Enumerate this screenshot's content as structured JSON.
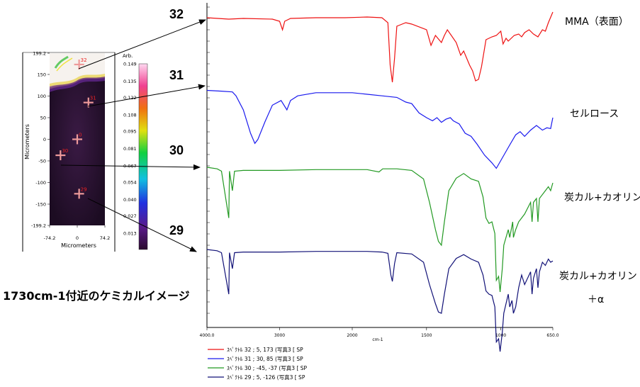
{
  "chart_data": {
    "type": "line",
    "title": "",
    "xlabel": "cm-1",
    "ylabel": "",
    "xlim": [
      4000,
      650
    ],
    "x_ticks": [
      "4000.0",
      "3000",
      "2000",
      "1500",
      "1000",
      "650.0"
    ],
    "grid": false,
    "legend_position": "bottom-left",
    "series": [
      {
        "id": "32",
        "name": "ｽﾍﾟｸﾄﾙ 32 ; 5, 173 (写真3 [ SP",
        "label": "MMA（表面）",
        "color": "#ee1111",
        "points": [
          [
            4000,
            0.97
          ],
          [
            3850,
            0.96
          ],
          [
            3700,
            0.95
          ],
          [
            3500,
            0.96
          ],
          [
            3100,
            0.95
          ],
          [
            3000,
            0.92
          ],
          [
            2960,
            0.8
          ],
          [
            2930,
            0.92
          ],
          [
            2850,
            0.96
          ],
          [
            2500,
            0.97
          ],
          [
            2100,
            0.97
          ],
          [
            1900,
            0.98
          ],
          [
            1800,
            0.97
          ],
          [
            1760,
            0.9
          ],
          [
            1745,
            0.3
          ],
          [
            1730,
            0.06
          ],
          [
            1715,
            0.4
          ],
          [
            1700,
            0.85
          ],
          [
            1640,
            0.9
          ],
          [
            1600,
            0.88
          ],
          [
            1500,
            0.8
          ],
          [
            1470,
            0.58
          ],
          [
            1440,
            0.72
          ],
          [
            1400,
            0.62
          ],
          [
            1380,
            0.72
          ],
          [
            1360,
            0.8
          ],
          [
            1300,
            0.62
          ],
          [
            1270,
            0.44
          ],
          [
            1250,
            0.5
          ],
          [
            1210,
            0.3
          ],
          [
            1190,
            0.22
          ],
          [
            1170,
            0.08
          ],
          [
            1150,
            0.1
          ],
          [
            1130,
            0.28
          ],
          [
            1100,
            0.66
          ],
          [
            1060,
            0.7
          ],
          [
            1030,
            0.72
          ],
          [
            1000,
            0.78
          ],
          [
            985,
            0.6
          ],
          [
            965,
            0.68
          ],
          [
            950,
            0.64
          ],
          [
            910,
            0.72
          ],
          [
            880,
            0.74
          ],
          [
            860,
            0.7
          ],
          [
            840,
            0.76
          ],
          [
            810,
            0.8
          ],
          [
            780,
            0.74
          ],
          [
            750,
            0.7
          ],
          [
            720,
            0.8
          ],
          [
            700,
            0.78
          ],
          [
            680,
            0.9
          ],
          [
            660,
            1.0
          ],
          [
            650,
            1.05
          ]
        ]
      },
      {
        "id": "31",
        "name": "ｽﾍﾟｸﾄﾙ 31 ; 30, 85 (写真3 [ SP",
        "label": "セルロース",
        "color": "#1a1aee",
        "points": [
          [
            4000,
            0.95
          ],
          [
            3800,
            0.94
          ],
          [
            3650,
            0.93
          ],
          [
            3600,
            0.88
          ],
          [
            3500,
            0.7
          ],
          [
            3400,
            0.4
          ],
          [
            3340,
            0.27
          ],
          [
            3300,
            0.32
          ],
          [
            3200,
            0.55
          ],
          [
            3100,
            0.76
          ],
          [
            2980,
            0.82
          ],
          [
            2900,
            0.7
          ],
          [
            2850,
            0.82
          ],
          [
            2750,
            0.88
          ],
          [
            2500,
            0.92
          ],
          [
            2200,
            0.92
          ],
          [
            2000,
            0.92
          ],
          [
            1900,
            0.9
          ],
          [
            1800,
            0.88
          ],
          [
            1700,
            0.86
          ],
          [
            1640,
            0.8
          ],
          [
            1600,
            0.78
          ],
          [
            1550,
            0.66
          ],
          [
            1500,
            0.6
          ],
          [
            1460,
            0.56
          ],
          [
            1430,
            0.6
          ],
          [
            1400,
            0.54
          ],
          [
            1370,
            0.58
          ],
          [
            1340,
            0.6
          ],
          [
            1320,
            0.56
          ],
          [
            1280,
            0.52
          ],
          [
            1240,
            0.4
          ],
          [
            1200,
            0.36
          ],
          [
            1160,
            0.26
          ],
          [
            1110,
            0.12
          ],
          [
            1060,
            0.02
          ],
          [
            1030,
            -0.05
          ],
          [
            1000,
            0.05
          ],
          [
            970,
            0.15
          ],
          [
            940,
            0.25
          ],
          [
            900,
            0.38
          ],
          [
            870,
            0.42
          ],
          [
            840,
            0.36
          ],
          [
            800,
            0.44
          ],
          [
            760,
            0.5
          ],
          [
            720,
            0.44
          ],
          [
            690,
            0.47
          ],
          [
            665,
            0.46
          ],
          [
            650,
            0.6
          ]
        ]
      },
      {
        "id": "30",
        "name": "ｽﾍﾟｸﾄﾙ 30 ; -45, -37 (写真3 [ SP",
        "label": "炭カル+カオリン",
        "color": "#229922",
        "points": [
          [
            4000,
            1.0
          ],
          [
            3860,
            0.98
          ],
          [
            3800,
            0.95
          ],
          [
            3700,
            0.35
          ],
          [
            3690,
            0.95
          ],
          [
            3650,
            0.7
          ],
          [
            3620,
            0.95
          ],
          [
            3500,
            0.96
          ],
          [
            3000,
            0.96
          ],
          [
            2500,
            0.97
          ],
          [
            2000,
            0.97
          ],
          [
            1900,
            0.97
          ],
          [
            1820,
            0.94
          ],
          [
            1795,
            0.98
          ],
          [
            1700,
            0.98
          ],
          [
            1600,
            0.96
          ],
          [
            1520,
            0.85
          ],
          [
            1480,
            0.55
          ],
          [
            1440,
            0.2
          ],
          [
            1420,
            0.05
          ],
          [
            1400,
            0.0
          ],
          [
            1380,
            0.3
          ],
          [
            1350,
            0.7
          ],
          [
            1300,
            0.86
          ],
          [
            1250,
            0.92
          ],
          [
            1200,
            0.85
          ],
          [
            1150,
            0.82
          ],
          [
            1120,
            0.62
          ],
          [
            1100,
            0.35
          ],
          [
            1080,
            0.28
          ],
          [
            1060,
            0.3
          ],
          [
            1040,
            0.15
          ],
          [
            1030,
            -0.45
          ],
          [
            1015,
            -0.4
          ],
          [
            1005,
            -0.6
          ],
          [
            990,
            -0.3
          ],
          [
            980,
            0.0
          ],
          [
            950,
            0.2
          ],
          [
            940,
            0.1
          ],
          [
            920,
            0.3
          ],
          [
            915,
            0.1
          ],
          [
            900,
            0.2
          ],
          [
            880,
            0.3
          ],
          [
            840,
            0.4
          ],
          [
            800,
            0.55
          ],
          [
            790,
            0.3
          ],
          [
            780,
            0.55
          ],
          [
            760,
            0.6
          ],
          [
            750,
            0.3
          ],
          [
            740,
            0.6
          ],
          [
            700,
            0.7
          ],
          [
            680,
            0.75
          ],
          [
            665,
            0.7
          ],
          [
            650,
            0.8
          ]
        ]
      },
      {
        "id": "29",
        "name": "ｽﾍﾟｸﾄﾙ 29 ; 5, -126 (写真3 [ SP",
        "label": "炭カル+カオリン",
        "label_extra": "＋α",
        "color": "#111177",
        "points": [
          [
            4000,
            1.0
          ],
          [
            3860,
            0.98
          ],
          [
            3800,
            0.95
          ],
          [
            3700,
            0.3
          ],
          [
            3690,
            0.95
          ],
          [
            3650,
            0.7
          ],
          [
            3620,
            0.95
          ],
          [
            3500,
            0.96
          ],
          [
            3000,
            0.96
          ],
          [
            2500,
            0.97
          ],
          [
            2000,
            0.97
          ],
          [
            1900,
            0.97
          ],
          [
            1800,
            0.96
          ],
          [
            1760,
            0.94
          ],
          [
            1740,
            0.6
          ],
          [
            1730,
            0.5
          ],
          [
            1715,
            0.78
          ],
          [
            1700,
            0.95
          ],
          [
            1600,
            0.93
          ],
          [
            1520,
            0.8
          ],
          [
            1480,
            0.45
          ],
          [
            1440,
            0.15
          ],
          [
            1420,
            0.02
          ],
          [
            1400,
            0.0
          ],
          [
            1380,
            0.3
          ],
          [
            1350,
            0.7
          ],
          [
            1300,
            0.86
          ],
          [
            1250,
            0.92
          ],
          [
            1200,
            0.85
          ],
          [
            1150,
            0.8
          ],
          [
            1120,
            0.6
          ],
          [
            1100,
            0.35
          ],
          [
            1080,
            0.3
          ],
          [
            1060,
            0.28
          ],
          [
            1040,
            0.1
          ],
          [
            1030,
            -0.45
          ],
          [
            1015,
            -0.4
          ],
          [
            1005,
            -0.6
          ],
          [
            990,
            -0.3
          ],
          [
            980,
            0.0
          ],
          [
            950,
            0.3
          ],
          [
            940,
            0.1
          ],
          [
            925,
            0.2
          ],
          [
            915,
            0.0
          ],
          [
            900,
            0.1
          ],
          [
            880,
            0.4
          ],
          [
            860,
            0.6
          ],
          [
            840,
            0.45
          ],
          [
            800,
            0.65
          ],
          [
            790,
            0.3
          ],
          [
            780,
            0.55
          ],
          [
            760,
            0.7
          ],
          [
            750,
            0.4
          ],
          [
            740,
            0.65
          ],
          [
            720,
            0.8
          ],
          [
            700,
            0.75
          ],
          [
            680,
            0.85
          ],
          [
            665,
            0.8
          ],
          [
            650,
            0.82
          ]
        ]
      }
    ]
  },
  "numbers": {
    "s32": "32",
    "s31": "31",
    "s30": "30",
    "s29": "29"
  },
  "image": {
    "caption": "1730cm-1付近のケミカルイメージ",
    "y_axis_label": "Micrometers",
    "x_axis_label": "Micrometers",
    "y_ticks": [
      "199.2",
      "150",
      "100",
      "50",
      "0",
      "-50",
      "-100",
      "-150",
      "-199.2"
    ],
    "x_ticks": [
      "-74.2",
      "0",
      "74.2"
    ],
    "colorbar_title": "Arb.",
    "colorbar_ticks": [
      "0.149",
      "0.135",
      "0.122",
      "0.108",
      "0.095",
      "0.081",
      "0.067",
      "0.054",
      "0.040",
      "0.027",
      "0.013"
    ],
    "markers": [
      {
        "label": "32",
        "x": 5,
        "y": 173
      },
      {
        "label": "31",
        "x": 30,
        "y": 85
      },
      {
        "label": "0",
        "x": 0,
        "y": 0
      },
      {
        "label": "30",
        "x": -45,
        "y": -37
      },
      {
        "label": "29",
        "x": 5,
        "y": -126
      }
    ],
    "colors": {
      "background": "#2a1432",
      "surface": "#f6f2ee",
      "marker": "#ee9a9a",
      "marker_label": "#ee2222"
    }
  }
}
